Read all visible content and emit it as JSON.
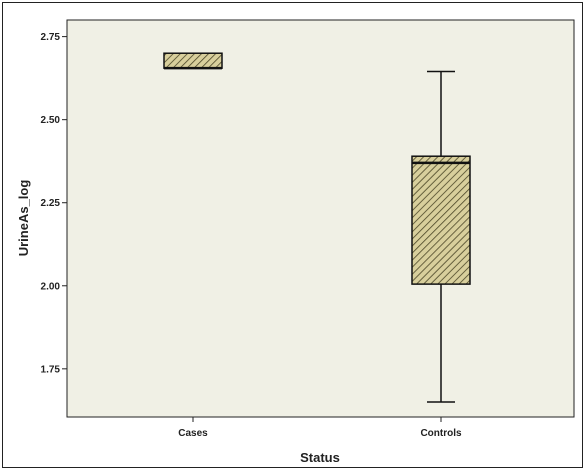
{
  "chart_data": {
    "type": "box",
    "xlabel": "Status",
    "ylabel": "UrineAs_log",
    "categories": [
      "Cases",
      "Controls"
    ],
    "ylim": [
      1.605,
      2.8
    ],
    "yticks": [
      1.75,
      2.0,
      2.25,
      2.5,
      2.75
    ],
    "ytick_labels": [
      "1.75",
      "2.00",
      "2.25",
      "2.50",
      "2.75"
    ],
    "boxes": [
      {
        "category": "Cases",
        "whisker_low": 2.655,
        "q1": 2.655,
        "median": 2.655,
        "q3": 2.7,
        "whisker_high": 2.7
      },
      {
        "category": "Controls",
        "whisker_low": 1.65,
        "q1": 2.005,
        "median": 2.37,
        "q3": 2.39,
        "whisker_high": 2.645
      }
    ],
    "plot_background": "#f0f0e5",
    "box_fill": "#d8cf9c",
    "box_hatch": "#4a4526",
    "grid": false,
    "legend": "none"
  }
}
